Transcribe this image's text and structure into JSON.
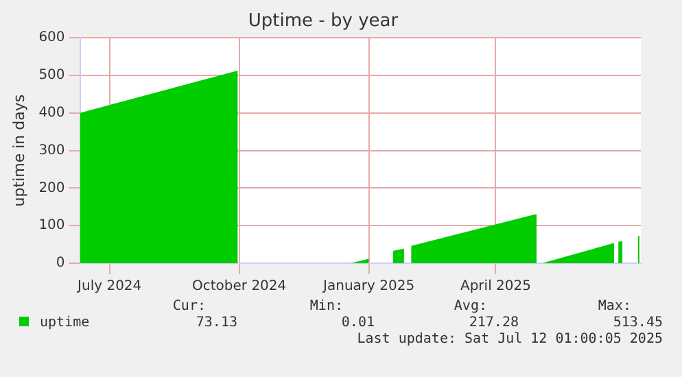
{
  "chart_data": {
    "type": "area",
    "title": "Uptime - by year",
    "ylabel": "uptime in days",
    "series": [
      {
        "name": "uptime",
        "color": "#00cc00",
        "x": [
          "2024-06-10",
          "2024-09-30",
          "2024-10-01",
          "2024-12-19",
          "2025-01-01",
          "2025-01-02",
          "2025-01-18",
          "2025-01-26",
          "2025-01-27",
          "2025-01-31",
          "2025-04-30",
          "2025-05-01",
          "2025-05-04",
          "2025-06-24",
          "2025-06-25",
          "2025-06-27",
          "2025-06-30",
          "2025-07-01",
          "2025-07-11",
          "2025-07-12"
        ],
        "values": [
          400,
          513,
          null,
          0,
          12,
          null,
          33,
          39,
          null,
          46,
          131,
          null,
          0,
          54,
          null,
          57,
          59,
          null,
          73,
          73
        ]
      }
    ],
    "xlim": [
      "2024-06-10",
      "2025-07-13"
    ],
    "xticks": [
      {
        "value": "2024-07-01",
        "label": "July 2024"
      },
      {
        "value": "2024-10-01",
        "label": "October 2024"
      },
      {
        "value": "2025-01-01",
        "label": "January 2025"
      },
      {
        "value": "2025-04-01",
        "label": "April 2025"
      }
    ],
    "ylim": [
      0,
      600
    ],
    "yticks": [
      0,
      100,
      200,
      300,
      400,
      500,
      600
    ],
    "grid": true,
    "legend": "bottom left",
    "annotations": [
      "Cur:",
      "Min:",
      "Avg:",
      "Max:",
      "73.13",
      "0.01",
      "217.28",
      "513.45",
      "Last update: Sat Jul 12 01:00:05 2025"
    ]
  }
}
